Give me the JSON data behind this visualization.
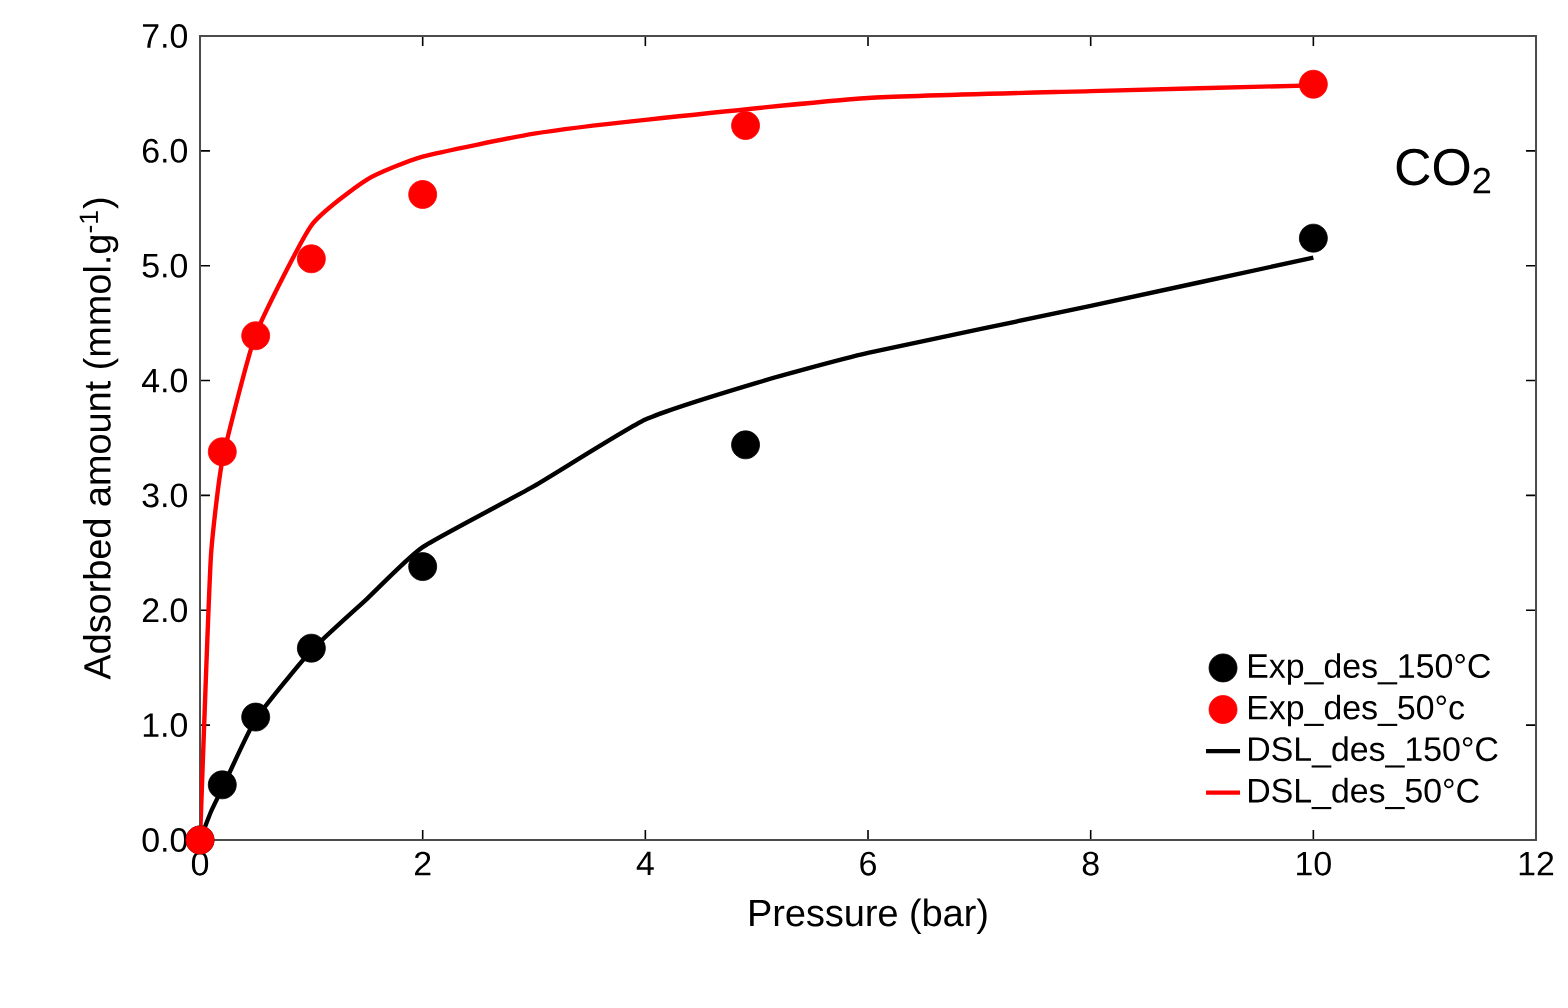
{
  "chart_data": {
    "type": "scatter",
    "xlabel": "Pressure (bar)",
    "ylabel": "Adsorbed  amount (mmol.g$^{-1}$)",
    "annotations": [
      "CO$_{2}$"
    ],
    "xlim": [
      0,
      12
    ],
    "ylim": [
      0,
      7
    ],
    "xticks": [
      0,
      2,
      4,
      6,
      8,
      10,
      12
    ],
    "yticks": [
      {
        "value": 0,
        "label": "0.0"
      },
      {
        "value": 1,
        "label": "1.0"
      },
      {
        "value": 2,
        "label": "2.0"
      },
      {
        "value": 3,
        "label": "3.0"
      },
      {
        "value": 4,
        "label": "4.0"
      },
      {
        "value": 5,
        "label": "5.0"
      },
      {
        "value": 6,
        "label": "6.0"
      },
      {
        "value": 7,
        "label": "7.0"
      }
    ],
    "grid": false,
    "legend": "bottom right",
    "series": [
      {
        "name": "Exp_des_150°C",
        "marker": "circle",
        "color": "#000000",
        "x": [
          0,
          0.2,
          0.5,
          1,
          2,
          4.9,
          10
        ],
        "values": [
          0,
          0.48,
          1.07,
          1.67,
          2.38,
          3.44,
          5.24
        ]
      },
      {
        "name": "Exp_des_50°c",
        "marker": "circle",
        "color": "#ff0000",
        "x": [
          0,
          0.2,
          0.5,
          1,
          2,
          4.9,
          10
        ],
        "values": [
          0,
          3.38,
          4.39,
          5.06,
          5.62,
          6.22,
          6.58
        ]
      },
      {
        "name": "DSL_des_150°C",
        "type": "line",
        "marker": "none",
        "color": "#000000",
        "x": [
          0,
          0.1,
          0.2,
          0.5,
          1,
          1.5,
          2,
          3,
          4,
          5,
          6,
          8,
          10
        ],
        "values": [
          0,
          0.25,
          0.45,
          1.05,
          1.65,
          2.1,
          2.55,
          3.08,
          3.66,
          3.98,
          4.24,
          4.65,
          5.07
        ]
      },
      {
        "name": "DSL_des_50°C",
        "type": "line",
        "marker": "none",
        "color": "#ff0000",
        "x": [
          0,
          0.05,
          0.1,
          0.2,
          0.5,
          1,
          1.5,
          2,
          3,
          4,
          6,
          8,
          10
        ],
        "values": [
          0,
          1.34,
          2.5,
          3.3,
          4.4,
          5.35,
          5.75,
          5.95,
          6.15,
          6.27,
          6.46,
          6.52,
          6.57
        ]
      }
    ]
  }
}
